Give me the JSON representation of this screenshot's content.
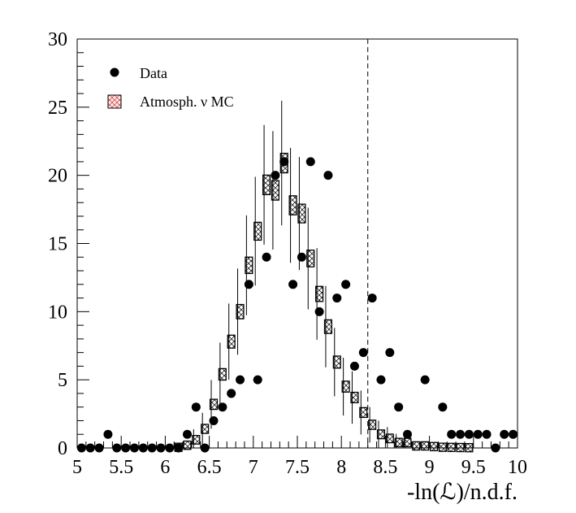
{
  "chart_data": {
    "type": "scatter",
    "title": "",
    "xlabel": "-ln(ℒ)/n.d.f.",
    "ylabel": "",
    "xlim": [
      5,
      10
    ],
    "ylim": [
      0,
      30
    ],
    "xticks": [
      "5",
      "5.5",
      "6",
      "6.5",
      "7",
      "7.5",
      "8",
      "8.5",
      "9",
      "9.5",
      "10"
    ],
    "yticks": [
      "0",
      "5",
      "10",
      "15",
      "20",
      "25",
      "30"
    ],
    "cut_line_x": 8.3,
    "legend": {
      "placement": "top-left",
      "entries": [
        "Data",
        "Atmosph. ν MC"
      ]
    },
    "bin_width": 0.1,
    "series": [
      {
        "name": "Data",
        "x": [
          5.05,
          5.15,
          5.25,
          5.35,
          5.45,
          5.55,
          5.65,
          5.75,
          5.85,
          5.95,
          6.05,
          6.15,
          6.25,
          6.35,
          6.45,
          6.55,
          6.65,
          6.75,
          6.85,
          6.95,
          7.05,
          7.15,
          7.25,
          7.35,
          7.45,
          7.55,
          7.65,
          7.75,
          7.85,
          7.95,
          8.05,
          8.15,
          8.25,
          8.35,
          8.45,
          8.55,
          8.65,
          8.75,
          8.95,
          9.15,
          9.25,
          9.35,
          9.45,
          9.55,
          9.65,
          9.75,
          9.85,
          9.95
        ],
        "values": [
          0,
          0,
          0,
          1,
          0,
          0,
          0,
          0,
          0,
          0,
          0,
          0,
          1,
          3,
          0,
          2,
          3,
          4,
          5,
          12,
          5,
          14,
          20,
          21,
          12,
          14,
          21,
          10,
          20,
          11,
          12,
          6,
          7,
          11,
          5,
          7,
          3,
          1,
          5,
          3,
          1,
          1,
          1,
          1,
          1,
          0,
          1,
          1
        ]
      },
      {
        "name": "Atmosph. ν MC",
        "x": [
          6.15,
          6.25,
          6.35,
          6.45,
          6.55,
          6.65,
          6.75,
          6.85,
          6.95,
          7.05,
          7.15,
          7.25,
          7.35,
          7.45,
          7.55,
          7.65,
          7.75,
          7.85,
          7.95,
          8.05,
          8.15,
          8.25,
          8.35,
          8.45,
          8.55,
          8.65,
          8.75,
          8.85,
          8.95,
          9.05,
          9.15,
          9.25,
          9.35,
          9.45
        ],
        "values": [
          0.05,
          0.2,
          0.6,
          1.4,
          3.2,
          5.4,
          7.8,
          10,
          13.4,
          15.9,
          19.3,
          18.9,
          20.9,
          17.8,
          17.2,
          13.9,
          11.3,
          8.9,
          6.3,
          4.5,
          3.7,
          2.6,
          1.7,
          1.0,
          0.7,
          0.4,
          0.4,
          0.15,
          0.15,
          0.1,
          0.05,
          0.04,
          0.03,
          0.02
        ]
      }
    ]
  }
}
